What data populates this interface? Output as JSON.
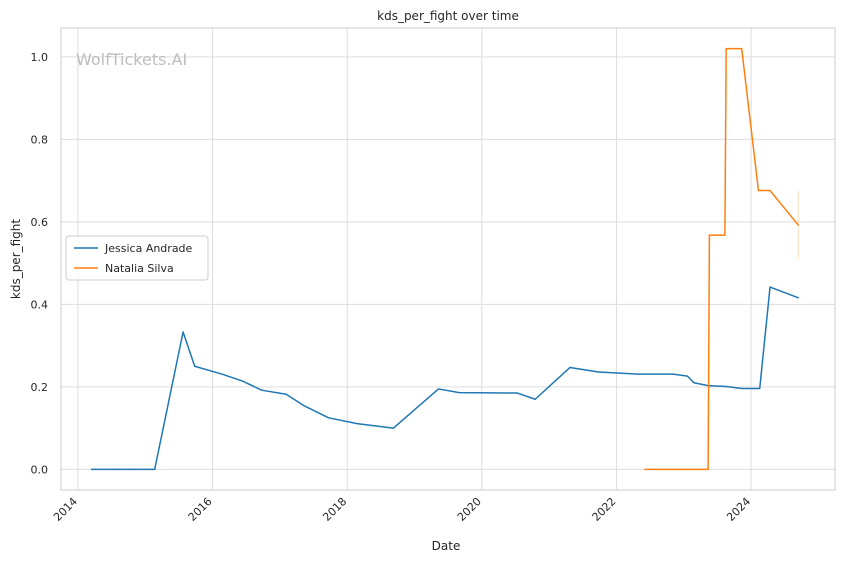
{
  "chart_data": {
    "type": "line",
    "title": "kds_per_fight over time",
    "xlabel": "Date",
    "ylabel": "kds_per_fight",
    "watermark": "WolfTickets.AI",
    "x_ticks": [
      "2014",
      "2016",
      "2018",
      "2020",
      "2022",
      "2024"
    ],
    "y_ticks": [
      "0.0",
      "0.2",
      "0.4",
      "0.6",
      "0.8",
      "1.0"
    ],
    "xlim": [
      "2013-10-01",
      "2025-04-01"
    ],
    "ylim": [
      -0.05,
      1.07
    ],
    "grid": true,
    "legend_position": "center-left",
    "series": [
      {
        "name": "Jessica Andrade",
        "color": "#1f77b4",
        "points": [
          [
            "2014-03-15",
            0.0
          ],
          [
            "2014-07-26",
            0.0
          ],
          [
            "2014-11-08",
            0.0
          ],
          [
            "2015-02-21",
            0.0
          ],
          [
            "2015-07-25",
            0.333
          ],
          [
            "2015-09-26",
            0.25
          ],
          [
            "2016-02-20",
            0.231
          ],
          [
            "2016-06-12",
            0.214
          ],
          [
            "2016-09-24",
            0.192
          ],
          [
            "2017-02-04",
            0.182
          ],
          [
            "2017-05-13",
            0.154
          ],
          [
            "2017-09-22",
            0.125
          ],
          [
            "2018-02-24",
            0.111
          ],
          [
            "2018-09-08",
            0.1
          ],
          [
            "2019-05-11",
            0.195
          ],
          [
            "2019-08-31",
            0.186
          ],
          [
            "2020-07-12",
            0.185
          ],
          [
            "2020-10-17",
            0.17
          ],
          [
            "2021-04-24",
            0.247
          ],
          [
            "2021-09-25",
            0.236
          ],
          [
            "2022-04-23",
            0.231
          ],
          [
            "2022-11-05",
            0.231
          ],
          [
            "2023-01-21",
            0.226
          ],
          [
            "2023-02-25",
            0.21
          ],
          [
            "2023-05-13",
            0.203
          ],
          [
            "2023-08-19",
            0.201
          ],
          [
            "2023-11-11",
            0.196
          ],
          [
            "2024-02-17",
            0.196
          ],
          [
            "2024-04-13",
            0.442
          ],
          [
            "2024-09-14",
            0.416
          ]
        ]
      },
      {
        "name": "Natalia Silva",
        "color": "#ff7f0e",
        "points": [
          [
            "2022-06-04",
            0.0
          ],
          [
            "2022-12-10",
            0.0
          ],
          [
            "2023-05-13",
            0.0
          ],
          [
            "2023-05-20",
            0.568
          ],
          [
            "2023-08-12",
            0.568
          ],
          [
            "2023-08-19",
            1.02
          ],
          [
            "2023-11-11",
            1.02
          ],
          [
            "2024-02-10",
            0.676
          ],
          [
            "2024-04-13",
            0.676
          ],
          [
            "2024-09-14",
            0.592
          ]
        ],
        "band": {
          "x": "2024-09-14",
          "low": 0.51,
          "high": 0.675
        }
      }
    ]
  }
}
